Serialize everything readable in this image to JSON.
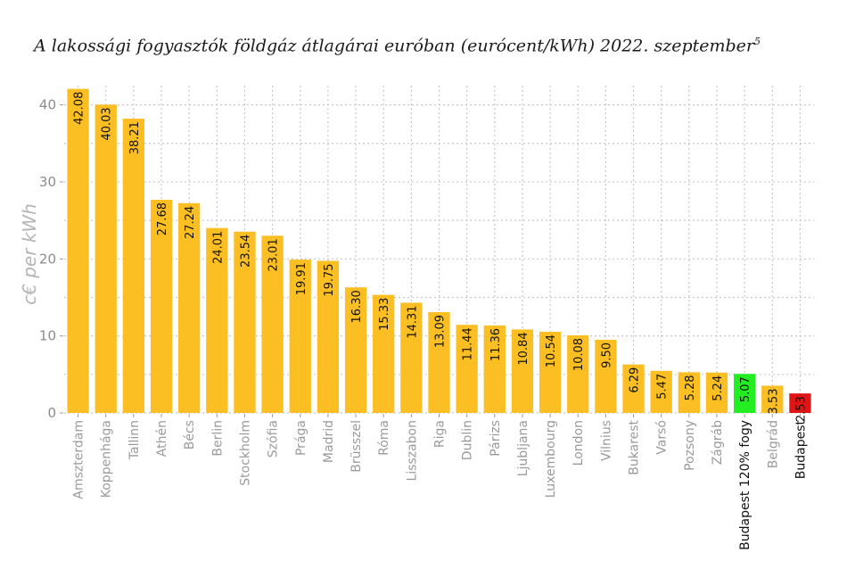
{
  "chart_data": {
    "type": "bar",
    "title": "A lakossági fogyasztók földgáz átlagárai euróban (eurócent/kWh) 2022. szeptember",
    "title_superscript": "5",
    "xlabel": "",
    "ylabel": "c€ per kWh",
    "ylim": [
      0,
      42.5
    ],
    "yticks": [
      0,
      10,
      20,
      30,
      40
    ],
    "grid": true,
    "categories": [
      "Amszterdam",
      "Koppenhága",
      "Tallinn",
      "Athén",
      "Bécs",
      "Berlin",
      "Stockholm",
      "Szófia",
      "Prága",
      "Madrid",
      "Brüsszel",
      "Róma",
      "Lisszabon",
      "Riga",
      "Dublin",
      "Párizs",
      "Ljubljana",
      "Luxembourg",
      "London",
      "Vilnius",
      "Bukarest",
      "Varsó",
      "Pozsony",
      "Zágráb",
      "Budapest 120% fogy",
      "Belgrád",
      "Budapest"
    ],
    "values": [
      42.08,
      40.03,
      38.21,
      27.68,
      27.24,
      24.01,
      23.54,
      23.01,
      19.91,
      19.75,
      16.3,
      15.33,
      14.31,
      13.09,
      11.44,
      11.36,
      10.84,
      10.54,
      10.08,
      9.5,
      6.29,
      5.47,
      5.28,
      5.24,
      5.07,
      3.53,
      2.53
    ],
    "value_labels": [
      "42.08",
      "40.03",
      "38.21",
      "27.68",
      "27.24",
      "24.01",
      "23.54",
      "23.01",
      "19.91",
      "19.75",
      "16.30",
      "15.33",
      "14.31",
      "13.09",
      "11.44",
      "11.36",
      "10.84",
      "10.54",
      "10.08",
      "9.50",
      "6.29",
      "5.47",
      "5.28",
      "5.24",
      "5.07",
      "3.53",
      "2.53"
    ],
    "colors": {
      "default": "#FBBF24",
      "Budapest 120% fogy": "#22EE22",
      "Budapest": "#E01515"
    },
    "highlight_label_color": "#111111",
    "label_color": "#9a9a9a"
  }
}
